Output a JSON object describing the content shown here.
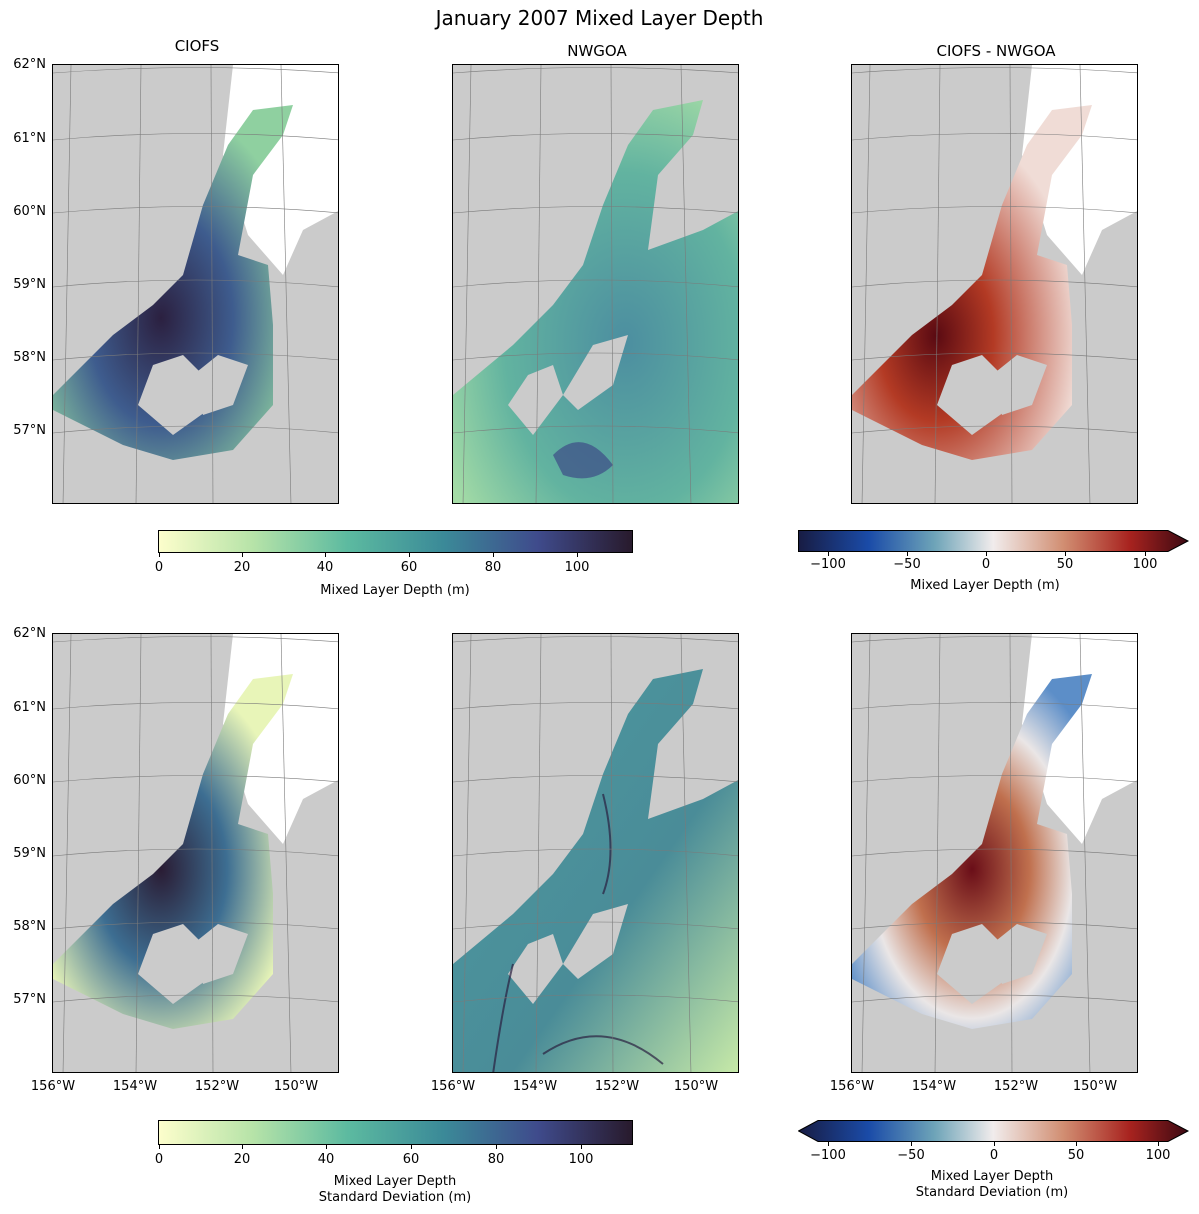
{
  "title": "January 2007 Mixed Layer Depth",
  "columns": [
    "CIOFS",
    "NWGOA",
    "CIOFS - NWGOA"
  ],
  "lat_ticks": [
    "62°N",
    "61°N",
    "60°N",
    "59°N",
    "58°N",
    "57°N"
  ],
  "lon_ticks": [
    "156°W",
    "154°W",
    "152°W",
    "150°W"
  ],
  "colorbars": {
    "mean": {
      "label": "Mixed Layer Depth (m)",
      "ticks": [
        "0",
        "20",
        "40",
        "60",
        "80",
        "100"
      ],
      "range": [
        0,
        113
      ],
      "colormap": "deep"
    },
    "mean_diff": {
      "label": "Mixed Layer Depth (m)",
      "ticks": [
        "−100",
        "−50",
        "0",
        "50",
        "100"
      ],
      "range": [
        -120,
        120
      ],
      "colormap": "balance",
      "extend": "max"
    },
    "std": {
      "label_line1": "Mixed Layer Depth",
      "label_line2": "Standard Deviation (m)",
      "ticks": [
        "0",
        "20",
        "40",
        "60",
        "80",
        "100"
      ],
      "range": [
        0,
        112
      ],
      "colormap": "deep"
    },
    "std_diff": {
      "label_line1": "Mixed Layer Depth",
      "label_line2": "Standard Deviation (m)",
      "ticks": [
        "−100",
        "−50",
        "0",
        "50",
        "100"
      ],
      "range": [
        -120,
        120
      ],
      "colormap": "balance",
      "extend": "both"
    }
  },
  "colors": {
    "land": "#cbcbcb",
    "ocean_bg": "#ffffff",
    "deep_low": "#fdfecc",
    "deep_mid": "#5cbaa0",
    "deep_high": "#281a2c",
    "bal_low": "#181c43",
    "bal_mid": "#f1ecec",
    "bal_high": "#3c0912"
  }
}
